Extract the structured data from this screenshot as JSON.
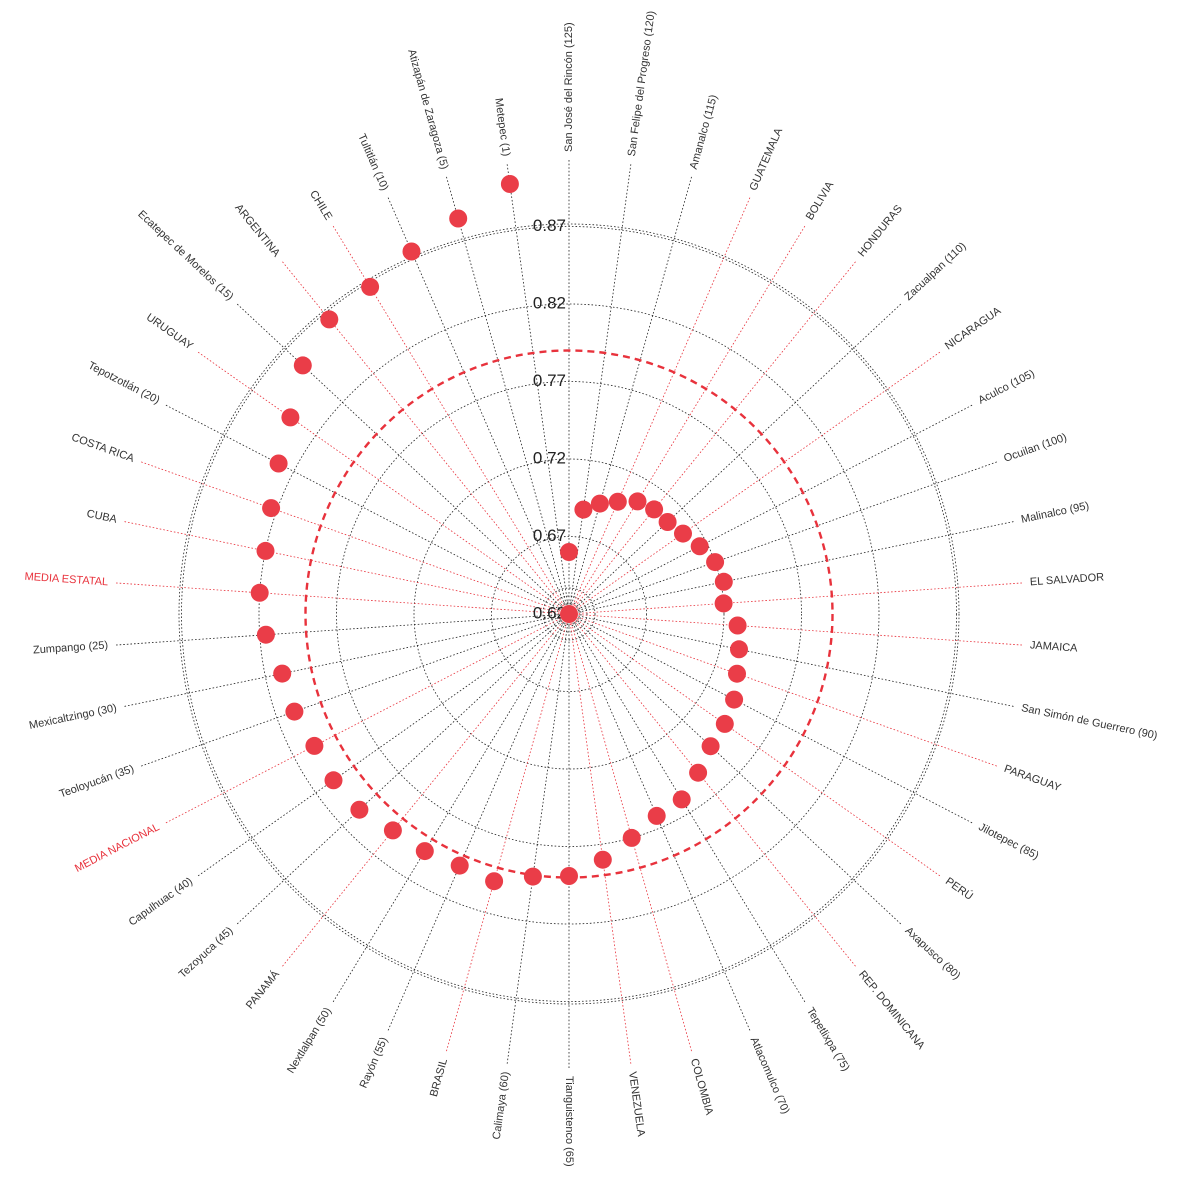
{
  "chart_data": {
    "type": "scatter",
    "subtype": "radial",
    "r_ticks": [
      0.62,
      0.67,
      0.72,
      0.77,
      0.82,
      0.87
    ],
    "r_range": [
      0.62,
      0.87
    ],
    "reference_ring": {
      "value": 0.79,
      "color": "#e8323c",
      "style": "dashed"
    },
    "colors": {
      "marker": "#ea3d48",
      "reference_spoke": "#e8323c",
      "spoke": "#222222",
      "reference_label": "#e8323c",
      "label": "#333333"
    },
    "spokes": [
      {
        "label": "San José del Rincón (125)",
        "kind": "municipio",
        "value": 0.66
      },
      {
        "label": "San Felipe del Progreso (120)",
        "kind": "municipio",
        "value": 0.688
      },
      {
        "label": "Amanalco (115)",
        "kind": "municipio",
        "value": 0.694
      },
      {
        "label": "GUATEMALA",
        "kind": "country",
        "value": 0.699
      },
      {
        "label": "BOLIVIA",
        "kind": "country",
        "value": 0.705
      },
      {
        "label": "HONDURAS",
        "kind": "country",
        "value": 0.707
      },
      {
        "label": "Zacualpan (110)",
        "kind": "municipio",
        "value": 0.707
      },
      {
        "label": "NICARAGUA",
        "kind": "country",
        "value": 0.71
      },
      {
        "label": "Aculco (105)",
        "kind": "municipio",
        "value": 0.715
      },
      {
        "label": "Ocuilan (100)",
        "kind": "municipio",
        "value": 0.72
      },
      {
        "label": "Malinalco (95)",
        "kind": "municipio",
        "value": 0.722
      },
      {
        "label": "EL SALVADOR",
        "kind": "country",
        "value": 0.72
      },
      {
        "label": "JAMAICA",
        "kind": "country",
        "value": 0.729
      },
      {
        "label": "San Simón de Guerrero (90)",
        "kind": "municipio",
        "value": 0.732
      },
      {
        "label": "PARAGUAY",
        "kind": "country",
        "value": 0.735
      },
      {
        "label": "Jilotepec (85)",
        "kind": "municipio",
        "value": 0.74
      },
      {
        "label": "PERÚ",
        "kind": "country",
        "value": 0.743
      },
      {
        "label": "Axapusco (80)",
        "kind": "municipio",
        "value": 0.745
      },
      {
        "label": "REP. DOMINICANA",
        "kind": "country",
        "value": 0.752
      },
      {
        "label": "Tepetlixpa (75)",
        "kind": "municipio",
        "value": 0.76
      },
      {
        "label": "Atlacomulco (70)",
        "kind": "municipio",
        "value": 0.762
      },
      {
        "label": "COLOMBIA",
        "kind": "country",
        "value": 0.77
      },
      {
        "label": "VENEZUELA",
        "kind": "country",
        "value": 0.78
      },
      {
        "label": "Tianguistenco (65)",
        "kind": "municipio",
        "value": 0.789
      },
      {
        "label": "Calimaya (60)",
        "kind": "municipio",
        "value": 0.791
      },
      {
        "label": "BRASIL",
        "kind": "country",
        "value": 0.799
      },
      {
        "label": "Rayón (55)",
        "kind": "municipio",
        "value": 0.797
      },
      {
        "label": "Nextlalpan (50)",
        "kind": "municipio",
        "value": 0.799
      },
      {
        "label": "PANAMÁ",
        "kind": "country",
        "value": 0.8
      },
      {
        "label": "Tezoyuca (45)",
        "kind": "municipio",
        "value": 0.805
      },
      {
        "label": "Capulhuac (40)",
        "kind": "municipio",
        "value": 0.806
      },
      {
        "label": "MEDIA NACIONAL",
        "kind": "reference",
        "value": 0.805
      },
      {
        "label": "Teoloyucán (35)",
        "kind": "municipio",
        "value": 0.808
      },
      {
        "label": "Mexicaltzingo (30)",
        "kind": "municipio",
        "value": 0.809
      },
      {
        "label": "Zumpango (25)",
        "kind": "municipio",
        "value": 0.816
      },
      {
        "label": "MEDIA ESTATAL",
        "kind": "reference",
        "value": 0.82
      },
      {
        "label": "CUBA",
        "kind": "country",
        "value": 0.82
      },
      {
        "label": "COSTA RICA",
        "kind": "country",
        "value": 0.824
      },
      {
        "label": "Tepotzotlán (20)",
        "kind": "municipio",
        "value": 0.831
      },
      {
        "label": "URUGUAY",
        "kind": "country",
        "value": 0.84
      },
      {
        "label": "Ecatepec de Morelos (15)",
        "kind": "municipio",
        "value": 0.855
      },
      {
        "label": "ARGENTINA",
        "kind": "country",
        "value": 0.865
      },
      {
        "label": "CHILE",
        "kind": "country",
        "value": 0.867
      },
      {
        "label": "Tultitlán (10)",
        "kind": "municipio",
        "value": 0.875
      },
      {
        "label": "Atizapán de Zaragoza (5)",
        "kind": "municipio",
        "value": 0.885
      },
      {
        "label": "Metepec (1)",
        "kind": "municipio",
        "value": 0.9
      }
    ]
  }
}
